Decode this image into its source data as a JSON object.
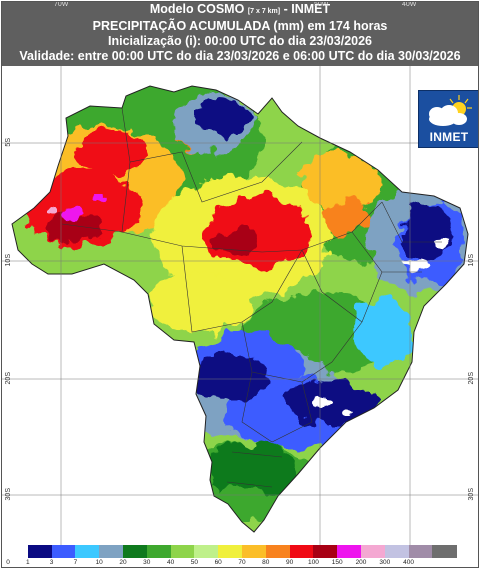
{
  "header": {
    "line1_main": "Modelo COSMO",
    "line1_small": "[7 x 7 km]",
    "line1_tail": "- INMET",
    "line2": "PRECIPITAÇÃO ACUMULADA (mm) em 174 horas",
    "line3": "Inicialização (i): 00:00 UTC do dia 23/03/2026",
    "line4": "Validade: entre 00:00 UTC do dia 23/03/2026 e 06:00 UTC do dia 30/03/2026"
  },
  "grid_labels": {
    "top": [
      {
        "text": "70W",
        "lon": -70
      },
      {
        "text": "50W",
        "lon": -50
      },
      {
        "text": "40W",
        "lon": -40
      }
    ],
    "left": [
      {
        "text": "5S",
        "lat": -5
      },
      {
        "text": "10S",
        "lat": -10
      },
      {
        "text": "20S",
        "lat": -20
      },
      {
        "text": "30S",
        "lat": -30
      }
    ],
    "right": [
      {
        "text": "5S",
        "lat": -5
      },
      {
        "text": "10S",
        "lat": -10
      },
      {
        "text": "20S",
        "lat": -20
      },
      {
        "text": "30S",
        "lat": -30
      }
    ]
  },
  "logo": {
    "text": "INMET",
    "icon": "cloud-sun-icon"
  },
  "legend": {
    "unit": "mm",
    "bins": [
      {
        "label": "0",
        "color": "#ffffff"
      },
      {
        "label": "1",
        "color": "#0a0a82"
      },
      {
        "label": "3",
        "color": "#3c5cff"
      },
      {
        "label": "7",
        "color": "#3cc8ff"
      },
      {
        "label": "10",
        "color": "#7ea2c2"
      },
      {
        "label": "20",
        "color": "#0f7a1e"
      },
      {
        "label": "30",
        "color": "#3ea82e"
      },
      {
        "label": "40",
        "color": "#8ed44a"
      },
      {
        "label": "50",
        "color": "#bff08a"
      },
      {
        "label": "60",
        "color": "#f0f03c"
      },
      {
        "label": "70",
        "color": "#fbbe28"
      },
      {
        "label": "80",
        "color": "#f8821e"
      },
      {
        "label": "90",
        "color": "#f00a14"
      },
      {
        "label": "100",
        "color": "#a80014"
      },
      {
        "label": "150",
        "color": "#ee14ee"
      },
      {
        "label": "200",
        "color": "#f4a8d2"
      },
      {
        "label": "300",
        "color": "#c2c2e2"
      },
      {
        "label": "400",
        "color": "#a08ca8"
      },
      {
        "label": "",
        "color": "#6e6e6e"
      }
    ]
  }
}
